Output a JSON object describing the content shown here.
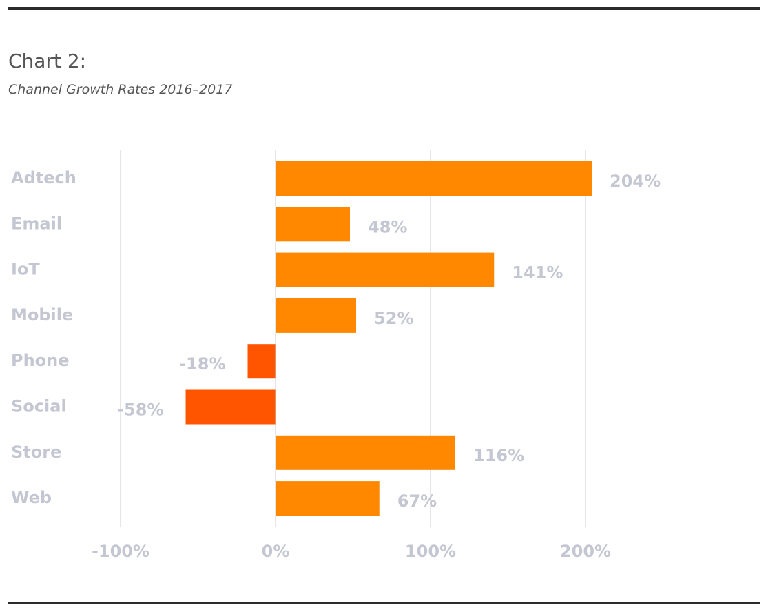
{
  "page": {
    "title": "Chart 2:",
    "subtitle": "Channel Growth Rates 2016–2017"
  },
  "colors": {
    "positive": "#ff8800",
    "negative": "#ff5500",
    "label": "#c4c7d2",
    "grid": "#cccccc",
    "rule": "#2b2b2b"
  },
  "chart_data": {
    "type": "bar",
    "orientation": "horizontal",
    "categories": [
      "Adtech",
      "Email",
      "IoT",
      "Mobile",
      "Phone",
      "Social",
      "Store",
      "Web"
    ],
    "values": [
      204,
      48,
      141,
      52,
      -18,
      -58,
      116,
      67
    ],
    "value_labels": [
      "204%",
      "48%",
      "141%",
      "52%",
      "-18%",
      "-58%",
      "116%",
      "67%"
    ],
    "xlim": [
      -100,
      200
    ],
    "xticks": [
      -100,
      0,
      100,
      200
    ],
    "xtick_labels": [
      "-100%",
      "0%",
      "100%",
      "200%"
    ],
    "grid": true,
    "legend": "none"
  }
}
